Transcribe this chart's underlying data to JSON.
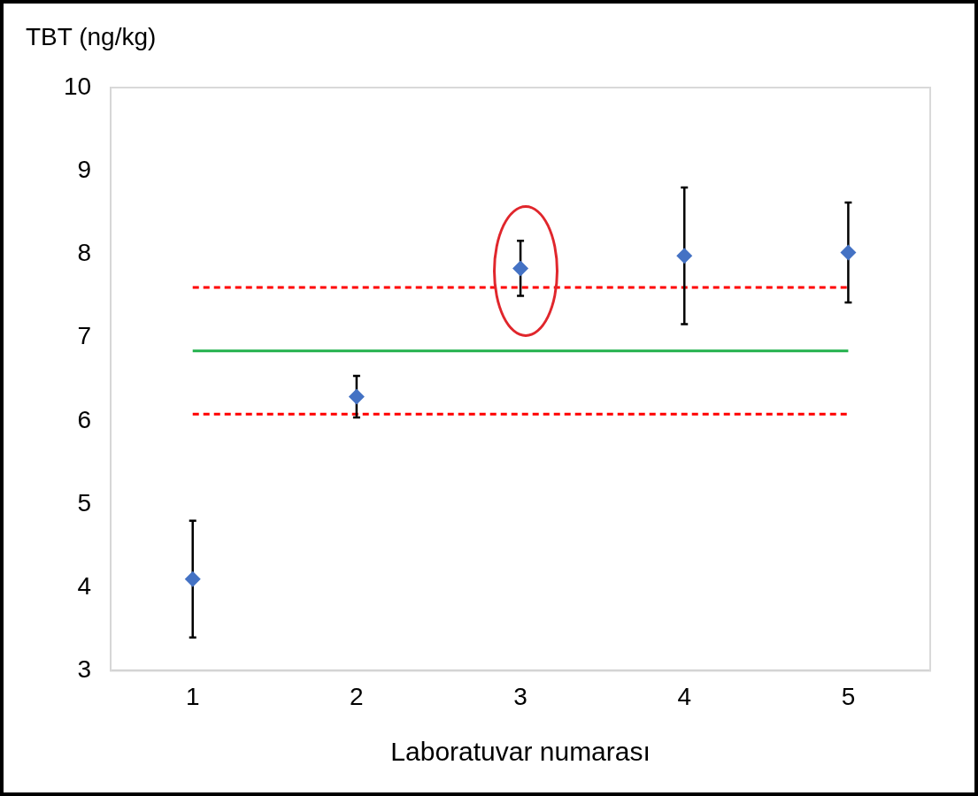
{
  "chart_data": {
    "type": "scatter",
    "ylabel": "TBT (ng/kg)",
    "xlabel": "Laboratuvar numarası",
    "categories": [
      "1",
      "2",
      "3",
      "4",
      "5"
    ],
    "series": [
      {
        "color": "#4472c4",
        "values": [
          4.1,
          6.29,
          7.83,
          7.98,
          8.02
        ],
        "errors": [
          0.7,
          0.25,
          0.33,
          0.82,
          0.6
        ]
      }
    ],
    "marker": "diamond",
    "ylim": [
      3,
      10
    ],
    "yticks": [
      3,
      4,
      5,
      6,
      7,
      8,
      9,
      10
    ],
    "grid": false,
    "legend": false,
    "ref_lines": [
      {
        "axis": "y",
        "value": 6.84,
        "color": "#22b14c",
        "line_style": "solid"
      },
      {
        "axis": "y",
        "value": 7.6,
        "color": "#ff0000",
        "line_style": "dashed"
      },
      {
        "axis": "y",
        "value": 6.08,
        "color": "#ff0000",
        "line_style": "dashed"
      }
    ]
  }
}
